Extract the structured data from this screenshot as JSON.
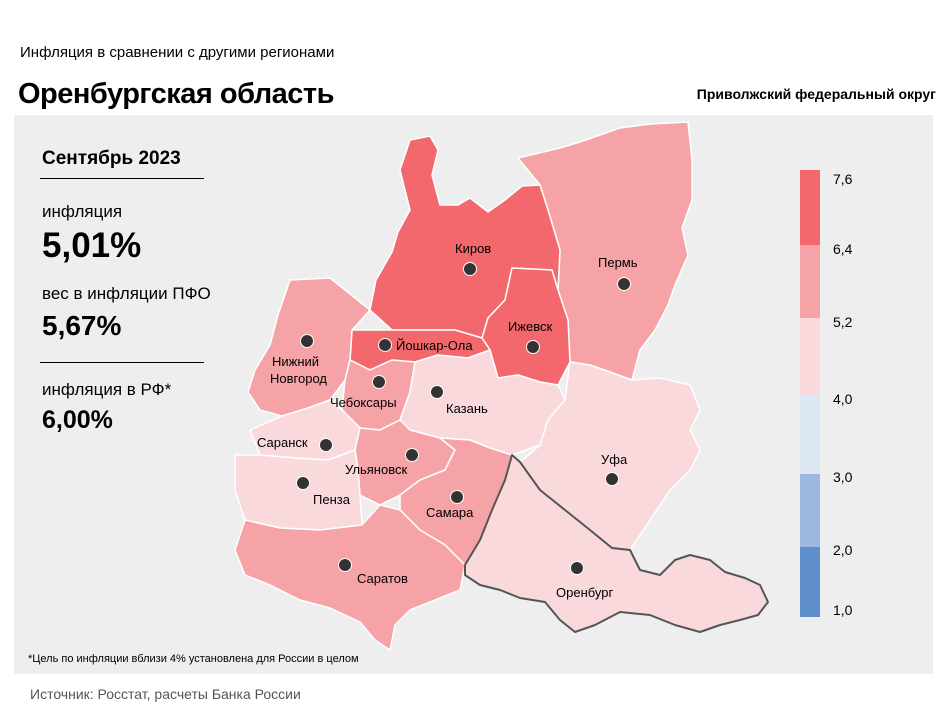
{
  "header": {
    "supertitle": "Инфляция  в сравнении  с другими  регионами",
    "title": "Оренбургская область",
    "district": "Приволжский федеральный округ"
  },
  "stats": {
    "period": "Сентябрь 2023",
    "inflation_label": "инфляция",
    "inflation_value": "5,01%",
    "weight_label": "вес в инфляции  ПФО",
    "weight_value": "5,67%",
    "rf_label": "инфляция  в РФ*",
    "rf_value": "6,00%"
  },
  "legend": {
    "ticks": [
      "7,6",
      "6,4",
      "5,2",
      "4,0",
      "3,0",
      "2,0",
      "1,0"
    ],
    "colors": [
      "#f2686c",
      "#f5a3a6",
      "#f9d9dc",
      "#dde6f3",
      "#9db8de",
      "#5f8fcb"
    ]
  },
  "cities": {
    "kirov": "Киров",
    "perm": "Пермь",
    "izhevsk": "Ижевск",
    "yoshkar_ola": "Йошкар-Ола",
    "nizhny_novgorod": "Нижний\nНовгород",
    "nizhny_novgorod_line1": "Нижний",
    "nizhny_novgorod_line2": "Новгород",
    "cheboksary": "Чебоксары",
    "kazan": "Казань",
    "saransk": "Саранск",
    "ulyanovsk": "Ульяновск",
    "ufa": "Уфа",
    "penza": "Пенза",
    "samara": "Самара",
    "saratov": "Саратов",
    "orenburg": "Оренбург"
  },
  "footnote": "*Цель по инфляции вблизи 4% установлена для России в целом",
  "source": "Источник: Росстат, расчеты Банка России"
}
